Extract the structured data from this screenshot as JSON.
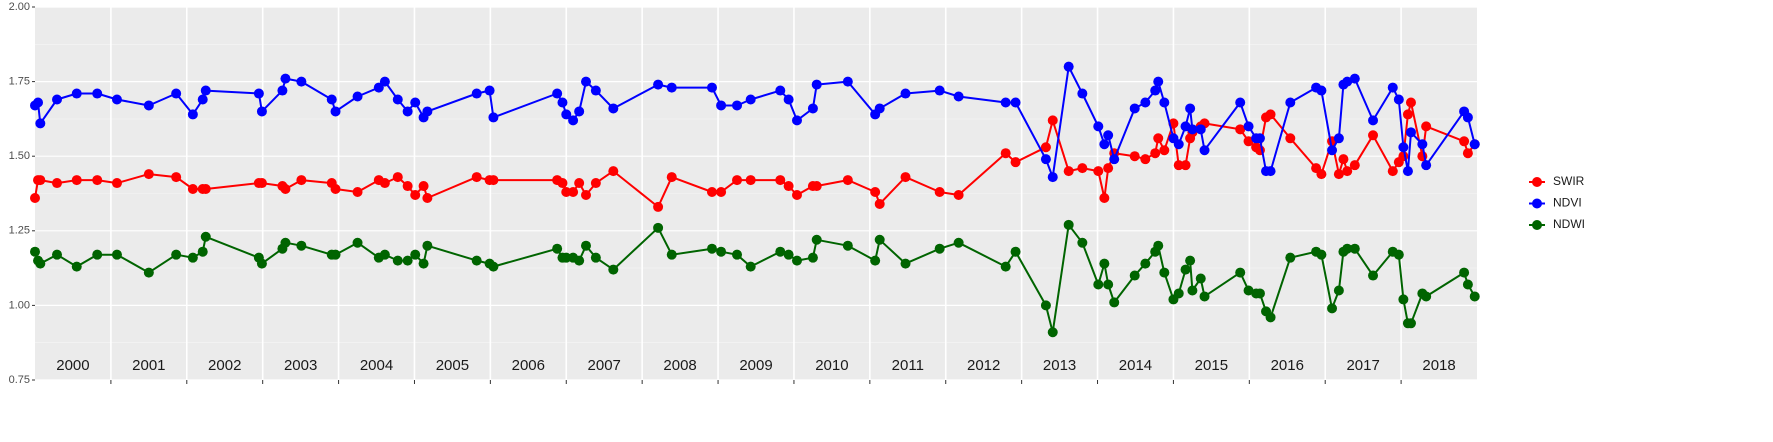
{
  "chart_data": {
    "type": "line",
    "x": [
      2000.0,
      2000.04,
      2000.07,
      2000.29,
      2000.55,
      2000.82,
      2001.08,
      2001.5,
      2001.86,
      2002.08,
      2002.21,
      2002.25,
      2002.95,
      2002.99,
      2003.26,
      2003.3,
      2003.51,
      2003.91,
      2003.96,
      2004.25,
      2004.53,
      2004.61,
      2004.78,
      2004.91,
      2005.01,
      2005.12,
      2005.17,
      2005.82,
      2005.99,
      2006.04,
      2006.88,
      2006.95,
      2007.0,
      2007.09,
      2007.17,
      2007.26,
      2007.39,
      2007.62,
      2008.21,
      2008.39,
      2008.92,
      2009.04,
      2009.25,
      2009.43,
      2009.82,
      2009.93,
      2010.04,
      2010.25,
      2010.3,
      2010.71,
      2011.07,
      2011.13,
      2011.47,
      2011.92,
      2012.17,
      2012.79,
      2012.92,
      2013.32,
      2013.41,
      2013.62,
      2013.8,
      2014.01,
      2014.09,
      2014.14,
      2014.22,
      2014.49,
      2014.63,
      2014.76,
      2014.8,
      2014.88,
      2015.0,
      2015.07,
      2015.16,
      2015.22,
      2015.25,
      2015.36,
      2015.41,
      2015.88,
      2015.99,
      2016.09,
      2016.14,
      2016.22,
      2016.28,
      2016.54,
      2016.88,
      2016.95,
      2017.09,
      2017.18,
      2017.24,
      2017.29,
      2017.39,
      2017.63,
      2017.89,
      2017.97,
      2018.03,
      2018.09,
      2018.13,
      2018.28,
      2018.33,
      2018.83,
      2018.88,
      2018.97
    ],
    "series": [
      {
        "name": "SWIR",
        "color": "#ff0000",
        "values": [
          1.36,
          1.42,
          1.42,
          1.41,
          1.42,
          1.42,
          1.41,
          1.44,
          1.43,
          1.39,
          1.39,
          1.39,
          1.41,
          1.41,
          1.4,
          1.39,
          1.42,
          1.41,
          1.39,
          1.38,
          1.42,
          1.41,
          1.43,
          1.4,
          1.37,
          1.4,
          1.36,
          1.43,
          1.42,
          1.42,
          1.42,
          1.41,
          1.38,
          1.38,
          1.41,
          1.37,
          1.41,
          1.45,
          1.33,
          1.43,
          1.38,
          1.38,
          1.42,
          1.42,
          1.42,
          1.4,
          1.37,
          1.4,
          1.4,
          1.42,
          1.38,
          1.34,
          1.43,
          1.38,
          1.37,
          1.51,
          1.48,
          1.53,
          1.62,
          1.45,
          1.46,
          1.45,
          1.36,
          1.46,
          1.51,
          1.5,
          1.49,
          1.51,
          1.56,
          1.52,
          1.61,
          1.47,
          1.47,
          1.56,
          1.58,
          1.6,
          1.61,
          1.59,
          1.55,
          1.53,
          1.52,
          1.63,
          1.64,
          1.56,
          1.46,
          1.44,
          1.55,
          1.44,
          1.49,
          1.45,
          1.47,
          1.57,
          1.45,
          1.48,
          1.5,
          1.64,
          1.68,
          1.5,
          1.6,
          1.55,
          1.51,
          1.54
        ]
      },
      {
        "name": "NDVI",
        "color": "#0000ff",
        "values": [
          1.67,
          1.68,
          1.61,
          1.69,
          1.71,
          1.71,
          1.69,
          1.67,
          1.71,
          1.64,
          1.69,
          1.72,
          1.71,
          1.65,
          1.72,
          1.76,
          1.75,
          1.69,
          1.65,
          1.7,
          1.73,
          1.75,
          1.69,
          1.65,
          1.68,
          1.63,
          1.65,
          1.71,
          1.72,
          1.63,
          1.71,
          1.68,
          1.64,
          1.62,
          1.65,
          1.75,
          1.72,
          1.66,
          1.74,
          1.73,
          1.73,
          1.67,
          1.67,
          1.69,
          1.72,
          1.69,
          1.62,
          1.66,
          1.74,
          1.75,
          1.64,
          1.66,
          1.71,
          1.72,
          1.7,
          1.68,
          1.68,
          1.49,
          1.43,
          1.8,
          1.71,
          1.6,
          1.54,
          1.57,
          1.49,
          1.66,
          1.68,
          1.72,
          1.75,
          1.68,
          1.56,
          1.54,
          1.6,
          1.66,
          1.59,
          1.59,
          1.52,
          1.68,
          1.6,
          1.56,
          1.56,
          1.45,
          1.45,
          1.68,
          1.73,
          1.72,
          1.52,
          1.56,
          1.74,
          1.75,
          1.76,
          1.62,
          1.73,
          1.69,
          1.53,
          1.45,
          1.58,
          1.54,
          1.47,
          1.65,
          1.63,
          1.54
        ]
      },
      {
        "name": "NDWI",
        "color": "#006400",
        "values": [
          1.18,
          1.15,
          1.14,
          1.17,
          1.13,
          1.17,
          1.17,
          1.11,
          1.17,
          1.16,
          1.18,
          1.23,
          1.16,
          1.14,
          1.19,
          1.21,
          1.2,
          1.17,
          1.17,
          1.21,
          1.16,
          1.17,
          1.15,
          1.15,
          1.17,
          1.14,
          1.2,
          1.15,
          1.14,
          1.13,
          1.19,
          1.16,
          1.16,
          1.16,
          1.15,
          1.2,
          1.16,
          1.12,
          1.26,
          1.17,
          1.19,
          1.18,
          1.17,
          1.13,
          1.18,
          1.17,
          1.15,
          1.16,
          1.22,
          1.2,
          1.15,
          1.22,
          1.14,
          1.19,
          1.21,
          1.13,
          1.18,
          1.0,
          0.91,
          1.27,
          1.21,
          1.07,
          1.14,
          1.07,
          1.01,
          1.1,
          1.14,
          1.18,
          1.2,
          1.11,
          1.02,
          1.04,
          1.12,
          1.15,
          1.05,
          1.09,
          1.03,
          1.11,
          1.05,
          1.04,
          1.04,
          0.98,
          0.96,
          1.16,
          1.18,
          1.17,
          0.99,
          1.05,
          1.18,
          1.19,
          1.19,
          1.1,
          1.18,
          1.17,
          1.02,
          0.94,
          0.94,
          1.04,
          1.03,
          1.11,
          1.07,
          1.03
        ]
      }
    ],
    "xlim": [
      2000,
      2019
    ],
    "xticks": [
      {
        "value": 2000.5,
        "label": "2000"
      },
      {
        "value": 2001.5,
        "label": "2001"
      },
      {
        "value": 2002.5,
        "label": "2002"
      },
      {
        "value": 2003.5,
        "label": "2003"
      },
      {
        "value": 2004.5,
        "label": "2004"
      },
      {
        "value": 2005.5,
        "label": "2005"
      },
      {
        "value": 2006.5,
        "label": "2006"
      },
      {
        "value": 2007.5,
        "label": "2007"
      },
      {
        "value": 2008.5,
        "label": "2008"
      },
      {
        "value": 2009.5,
        "label": "2009"
      },
      {
        "value": 2010.5,
        "label": "2010"
      },
      {
        "value": 2011.5,
        "label": "2011"
      },
      {
        "value": 2012.5,
        "label": "2012"
      },
      {
        "value": 2013.5,
        "label": "2013"
      },
      {
        "value": 2014.5,
        "label": "2014"
      },
      {
        "value": 2015.5,
        "label": "2015"
      },
      {
        "value": 2016.5,
        "label": "2016"
      },
      {
        "value": 2017.5,
        "label": "2017"
      },
      {
        "value": 2018.5,
        "label": "2018"
      }
    ],
    "xgrid": [
      2001,
      2002,
      2003,
      2004,
      2005,
      2006,
      2007,
      2008,
      2009,
      2010,
      2011,
      2012,
      2013,
      2014,
      2015,
      2016,
      2017,
      2018
    ],
    "ylim": [
      0.75,
      2
    ],
    "yticks": [
      {
        "value": 0.75,
        "label": "0.75"
      },
      {
        "value": 1,
        "label": "1.00"
      },
      {
        "value": 1.25,
        "label": "1.25"
      },
      {
        "value": 1.5,
        "label": "1.50"
      },
      {
        "value": 1.75,
        "label": "1.75"
      },
      {
        "value": 2,
        "label": "2.00"
      }
    ],
    "grid": true,
    "legend": "right"
  }
}
